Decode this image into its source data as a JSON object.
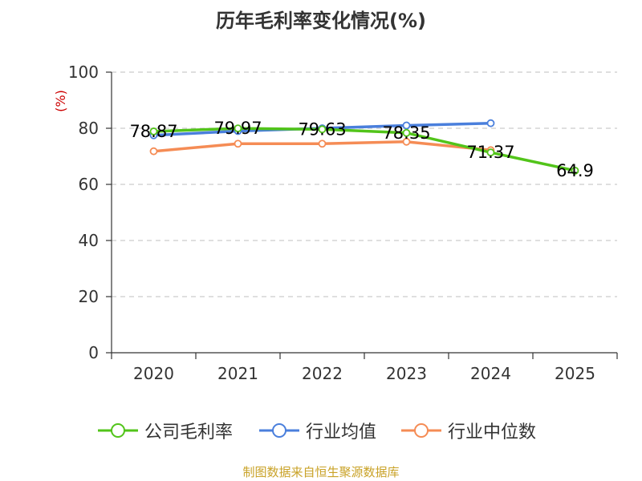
{
  "chart_data": {
    "type": "line",
    "title": "历年毛利率变化情况(%)",
    "ylabel": "(%)",
    "xlabel": "",
    "ylim": [
      0,
      100
    ],
    "yticks": [
      0,
      20,
      40,
      60,
      80,
      100
    ],
    "categories": [
      "2020",
      "2021",
      "2022",
      "2023",
      "2024",
      "2025"
    ],
    "grid": true,
    "legend_position": "bottom",
    "series": [
      {
        "name": "公司毛利率",
        "color": "#52c41a",
        "values": [
          78.87,
          79.97,
          79.63,
          78.35,
          71.37,
          64.9
        ],
        "labels": [
          "78.87",
          "79.97",
          "79.63",
          "78.35",
          "71.37",
          "64.9"
        ]
      },
      {
        "name": "行业均值",
        "color": "#4a7fdc",
        "values": [
          77.5,
          79.0,
          80.0,
          81.0,
          81.8,
          null
        ]
      },
      {
        "name": "行业中位数",
        "color": "#f58c55",
        "values": [
          71.8,
          74.5,
          74.5,
          75.2,
          72.2,
          null
        ]
      }
    ]
  },
  "source": "制图数据来自恒生聚源数据库"
}
